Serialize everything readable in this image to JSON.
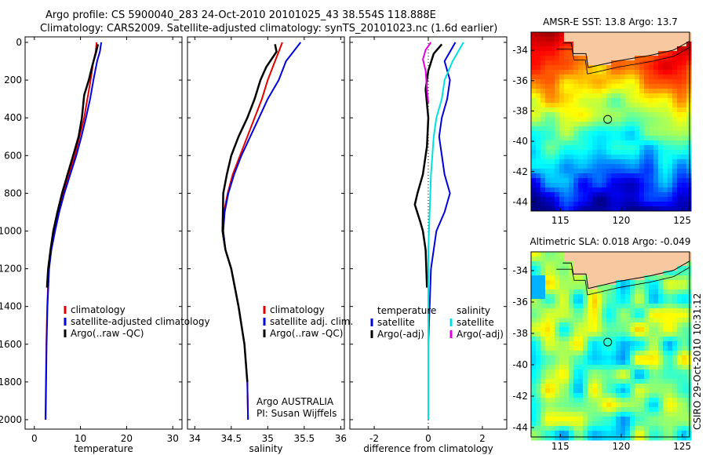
{
  "header": {
    "line1": "Argo profile: CS 5900040_283 24-Oct-2010 20101025_43 38.554S 118.888E",
    "line2": "Climatology: CARS2009. Satellite-adjusted climatology: synTS_20101023.nc (1.6d earlier)"
  },
  "credit": "CSIRO 29-Oct-2010 10:31:12",
  "colors": {
    "climatology": "#e00000",
    "satellite": "#0000e0",
    "argo": "#000000",
    "sat_salinity": "#00e0e0",
    "argo_salinity_adj": "#e000e0",
    "land": "#f8c8a0"
  },
  "chart_data": [
    {
      "type": "line",
      "id": "temperature",
      "xlabel": "temperature",
      "ylabel": "",
      "xlim": [
        -2,
        32
      ],
      "ylim": [
        2050,
        0
      ],
      "xticks": [
        0,
        10,
        20,
        30
      ],
      "xtick_labels": [
        "0",
        "10",
        "20",
        "30"
      ],
      "yticks": [
        0,
        200,
        400,
        600,
        800,
        1000,
        1200,
        1400,
        1600,
        1800,
        2000
      ],
      "ytick_labels": [
        "0",
        "200",
        "400",
        "600",
        "800",
        "1000",
        "1200",
        "1400",
        "1600",
        "1800",
        "2000"
      ],
      "legend": [
        "climatology",
        "satellite-adjusted climatology",
        "Argo(..raw -QC)"
      ],
      "annotations": [],
      "series": [
        {
          "name": "climatology",
          "color": "#e00000",
          "width": 2,
          "x": [
            13.5,
            13.3,
            12.8,
            12.2,
            11.5,
            10.8,
            9.8,
            8.8,
            7.5,
            6.3,
            5.2,
            4.3,
            3.6,
            3.1,
            2.8,
            2.6,
            2.5,
            2.4
          ],
          "y": [
            0,
            50,
            100,
            200,
            300,
            400,
            500,
            600,
            700,
            800,
            900,
            1000,
            1100,
            1200,
            1400,
            1600,
            1800,
            2000
          ]
        },
        {
          "name": "satellite-adjusted climatology",
          "color": "#0000e0",
          "width": 2,
          "x": [
            14.5,
            14.2,
            13.6,
            12.8,
            12.1,
            11.2,
            10.2,
            9.1,
            7.8,
            6.5,
            5.4,
            4.5,
            3.7,
            3.2,
            2.85,
            2.65,
            2.55,
            2.45
          ],
          "y": [
            0,
            50,
            100,
            200,
            300,
            400,
            500,
            600,
            700,
            800,
            900,
            1000,
            1100,
            1200,
            1400,
            1600,
            1800,
            2000
          ]
        },
        {
          "name": "Argo(..raw -QC)",
          "color": "#000000",
          "width": 2.5,
          "x": [
            13.8,
            13.4,
            12.6,
            11.8,
            10.8,
            10.3,
            9.6,
            8.4,
            7.2,
            6.0,
            5.0,
            4.1,
            3.5,
            3.0,
            2.75
          ],
          "y": [
            10,
            50,
            120,
            200,
            280,
            400,
            500,
            600,
            700,
            800,
            900,
            1000,
            1100,
            1200,
            1300
          ]
        }
      ]
    },
    {
      "type": "line",
      "id": "salinity",
      "xlabel": "salinity",
      "ylabel": "",
      "xlim": [
        33.9,
        36.05
      ],
      "ylim": [
        2050,
        0
      ],
      "xticks": [
        34,
        34.5,
        35,
        35.5,
        36
      ],
      "xtick_labels": [
        "34",
        "34.5",
        "35",
        "35.5",
        "36"
      ],
      "yticks": [],
      "ytick_labels": [],
      "legend": [
        "climatology",
        "satellite adj. clim.",
        "Argo(..raw -QC)"
      ],
      "annotations": [
        "Argo AUSTRALIA",
        "PI: Susan Wijffels"
      ],
      "series": [
        {
          "name": "climatology",
          "color": "#e00000",
          "width": 2,
          "x": [
            35.2,
            35.15,
            35.1,
            35.0,
            34.92,
            34.82,
            34.72,
            34.62,
            34.52,
            34.45,
            34.4,
            34.39,
            34.42,
            34.5,
            34.6,
            34.68,
            34.72,
            34.73
          ],
          "y": [
            0,
            50,
            100,
            200,
            300,
            400,
            500,
            600,
            700,
            800,
            900,
            1000,
            1100,
            1200,
            1400,
            1600,
            1800,
            2000
          ]
        },
        {
          "name": "satellite adj. clim.",
          "color": "#0000e0",
          "width": 2,
          "x": [
            35.45,
            35.35,
            35.25,
            35.15,
            35.0,
            34.88,
            34.76,
            34.64,
            34.54,
            34.46,
            34.41,
            34.39,
            34.42,
            34.5,
            34.6,
            34.68,
            34.72,
            34.73
          ],
          "y": [
            0,
            50,
            100,
            200,
            300,
            400,
            500,
            600,
            700,
            800,
            900,
            1000,
            1100,
            1200,
            1400,
            1600,
            1800,
            2000
          ]
        },
        {
          "name": "Argo(..raw -QC)",
          "color": "#000000",
          "width": 2.5,
          "x": [
            35.1,
            35.12,
            34.98,
            34.9,
            34.82,
            34.72,
            34.6,
            34.5,
            34.44,
            34.39,
            34.38,
            34.42,
            34.5,
            34.6,
            34.68,
            34.72
          ],
          "y": [
            10,
            50,
            130,
            200,
            300,
            400,
            500,
            600,
            700,
            800,
            1000,
            1100,
            1200,
            1400,
            1600,
            1800
          ]
        }
      ]
    },
    {
      "type": "line",
      "id": "difference",
      "xlabel": "difference from climatology",
      "ylabel": "",
      "xlim": [
        -2.9,
        2.9
      ],
      "ylim": [
        2050,
        0
      ],
      "xticks": [
        -2,
        0,
        2
      ],
      "xtick_labels": [
        "-2",
        "0",
        "2"
      ],
      "yticks": [],
      "ytick_labels": [],
      "legend_title_left": "temperature",
      "legend_title_right": "salinity",
      "legend_left": [
        "satellite",
        "Argo(-adj)"
      ],
      "legend_right": [
        "satellite",
        "Argo(-adj)"
      ],
      "annotations": [],
      "series": [
        {
          "name": "temperature satellite",
          "color": "#0000e0",
          "width": 2,
          "x": [
            1.0,
            0.8,
            0.6,
            0.8,
            0.7,
            0.5,
            0.4,
            0.6,
            0.8,
            0.6,
            0.3,
            0.1,
            0.0,
            0.0
          ],
          "y": [
            0,
            50,
            100,
            200,
            300,
            400,
            500,
            700,
            800,
            900,
            1000,
            1200,
            1600,
            2000
          ]
        },
        {
          "name": "temperature Argo(-adj)",
          "color": "#000000",
          "width": 2.5,
          "x": [
            0.5,
            0.2,
            0.0,
            -0.1,
            0.0,
            -0.05,
            -0.2,
            -0.4,
            -0.5,
            -0.3,
            -0.2,
            -0.1,
            -0.05
          ],
          "y": [
            10,
            60,
            150,
            250,
            400,
            550,
            700,
            800,
            860,
            950,
            1000,
            1100,
            1300
          ]
        },
        {
          "name": "salinity satellite",
          "color": "#00e0e0",
          "width": 2,
          "x": [
            1.3,
            1.1,
            0.9,
            0.6,
            0.5,
            0.3,
            0.2,
            0.1,
            0.05,
            0.0,
            0.0,
            0.0
          ],
          "y": [
            0,
            50,
            100,
            200,
            300,
            400,
            500,
            700,
            900,
            1100,
            1500,
            2000
          ]
        },
        {
          "name": "salinity Argo(-adj)",
          "color": "#e000e0",
          "width": 2,
          "x": [
            0.1,
            -0.1,
            -0.2,
            -0.1,
            -0.05,
            0.0
          ],
          "y": [
            0,
            40,
            90,
            150,
            250,
            320
          ]
        }
      ]
    }
  ],
  "maps": [
    {
      "title": "AMSR-E SST: 13.8 Argo: 13.7",
      "yticks": [
        "-34",
        "-36",
        "-38",
        "-40",
        "-42",
        "-44"
      ],
      "xticks": [
        "115",
        "120",
        "125"
      ],
      "kind": "sst"
    },
    {
      "title": "Altimetric SLA: 0.018 Argo: -0.049",
      "yticks": [
        "-34",
        "-36",
        "-38",
        "-40",
        "-42",
        "-44"
      ],
      "xticks": [
        "115",
        "120",
        "125"
      ],
      "kind": "sla"
    }
  ]
}
